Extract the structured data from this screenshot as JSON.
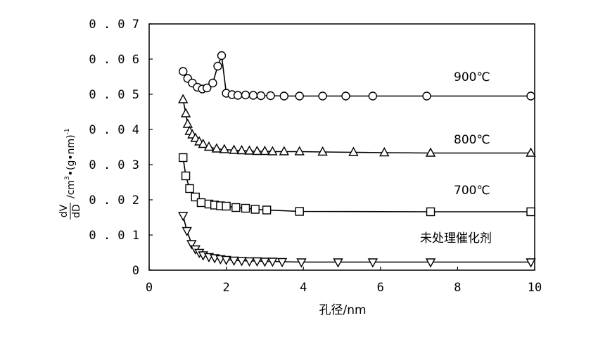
{
  "chart_data": {
    "type": "line",
    "xlabel": "孔径/nm",
    "ylabel": {
      "numerator": "dV",
      "denominator": "dD",
      "rest": "/cm",
      "sup3": "3",
      "middle": "•(g•nm)",
      "sup_minus1": "-1"
    },
    "xlim": [
      0,
      10
    ],
    "ylim": [
      0,
      0.07
    ],
    "x_ticks": [
      "0",
      "2",
      "4",
      "6",
      "8",
      "10"
    ],
    "y_ticks": [
      "0",
      "0.01",
      "0.02",
      "0.03",
      "0.04",
      "0.05",
      "0.06",
      "0.07"
    ],
    "grid": false,
    "series": [
      {
        "name": "900℃",
        "marker": "circle",
        "x": [
          0.88,
          1.0,
          1.12,
          1.25,
          1.38,
          1.5,
          1.65,
          1.78,
          1.88,
          2.0,
          2.15,
          2.3,
          2.5,
          2.7,
          2.9,
          3.15,
          3.5,
          3.9,
          4.5,
          5.1,
          5.8,
          7.2,
          9.9
        ],
        "values": [
          0.0565,
          0.0545,
          0.0532,
          0.052,
          0.0515,
          0.0518,
          0.0532,
          0.058,
          0.061,
          0.0503,
          0.0499,
          0.0497,
          0.0498,
          0.0497,
          0.0496,
          0.0496,
          0.0495,
          0.0495,
          0.0495,
          0.0495,
          0.0495,
          0.0495,
          0.0495
        ]
      },
      {
        "name": "800℃",
        "marker": "triangle-up",
        "x": [
          0.88,
          0.95,
          1.0,
          1.05,
          1.12,
          1.2,
          1.3,
          1.4,
          1.55,
          1.75,
          1.95,
          2.2,
          2.4,
          2.6,
          2.8,
          3.0,
          3.2,
          3.5,
          3.9,
          4.5,
          5.3,
          6.1,
          7.3,
          9.9
        ],
        "values": [
          0.0485,
          0.0445,
          0.0415,
          0.0395,
          0.0385,
          0.0375,
          0.0365,
          0.0358,
          0.035,
          0.0345,
          0.0343,
          0.0341,
          0.034,
          0.0339,
          0.0338,
          0.0338,
          0.0337,
          0.0337,
          0.0337,
          0.0336,
          0.0335,
          0.0334,
          0.0333,
          0.0333
        ]
      },
      {
        "name": "700℃",
        "marker": "square",
        "x": [
          0.88,
          0.95,
          1.05,
          1.2,
          1.35,
          1.55,
          1.7,
          1.85,
          2.0,
          2.25,
          2.5,
          2.75,
          3.05,
          3.9,
          7.3,
          9.9
        ],
        "values": [
          0.032,
          0.0268,
          0.0232,
          0.0208,
          0.0192,
          0.0188,
          0.0185,
          0.0183,
          0.0182,
          0.0178,
          0.0176,
          0.0173,
          0.0171,
          0.0167,
          0.0166,
          0.0166
        ]
      },
      {
        "name": "未处理催化剂",
        "marker": "triangle-down",
        "x": [
          0.88,
          0.98,
          1.1,
          1.2,
          1.3,
          1.4,
          1.55,
          1.7,
          1.85,
          2.0,
          2.2,
          2.4,
          2.6,
          2.8,
          3.0,
          3.2,
          3.45,
          3.95,
          4.9,
          5.8,
          7.3,
          9.9
        ],
        "values": [
          0.0155,
          0.0112,
          0.0075,
          0.006,
          0.005,
          0.0043,
          0.0038,
          0.0035,
          0.0032,
          0.003,
          0.0028,
          0.0027,
          0.0026,
          0.0026,
          0.0025,
          0.0025,
          0.0024,
          0.0023,
          0.0023,
          0.0023,
          0.0023,
          0.0023
        ]
      }
    ]
  }
}
